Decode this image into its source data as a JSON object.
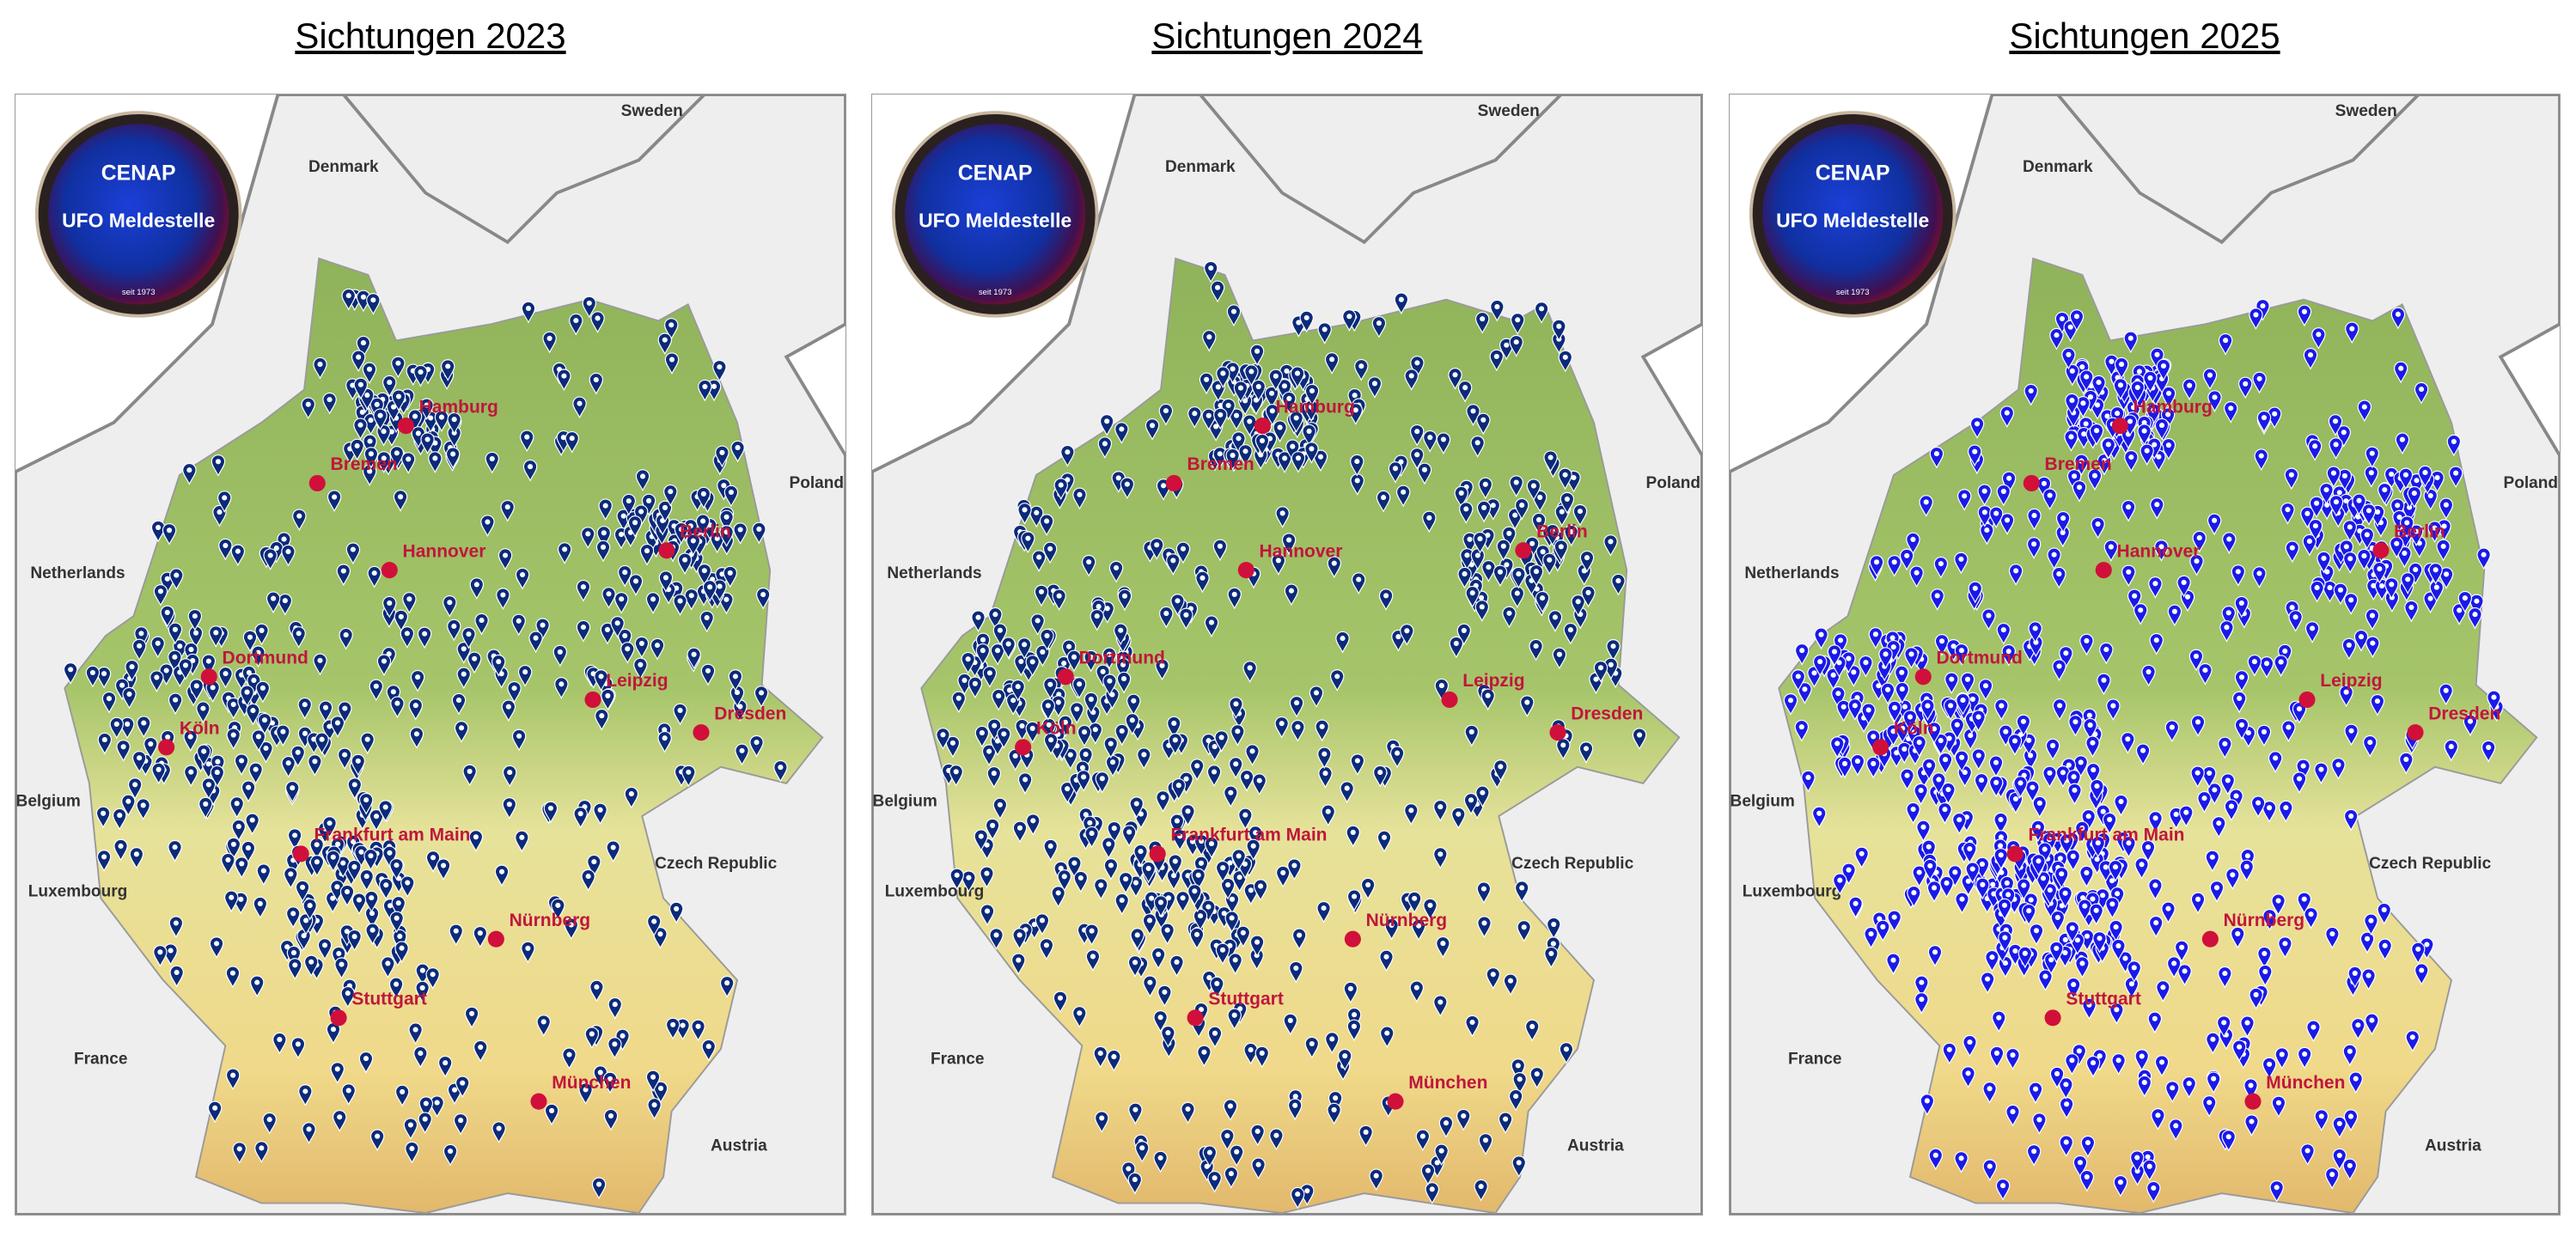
{
  "panels": [
    {
      "title": "Sichtungen 2023"
    },
    {
      "title": "Sichtungen 2024"
    },
    {
      "title": "Sichtungen 2025"
    }
  ],
  "logo": {
    "name": "CENAP",
    "subtitle": "UFO Meldestelle",
    "since": "seit 1973"
  },
  "map": {
    "countries": [
      "Sweden",
      "Denmark",
      "Poland",
      "Netherlands",
      "Belgium",
      "Luxembourg",
      "France",
      "Czech Republic",
      "Austria"
    ],
    "cities": [
      "Hamburg",
      "Bremen",
      "Hannover",
      "Berlin",
      "Dortmund",
      "Köln",
      "Leipzig",
      "Dresden",
      "Frankfurt am Main",
      "Nürnberg",
      "Stuttgart",
      "München"
    ]
  }
}
